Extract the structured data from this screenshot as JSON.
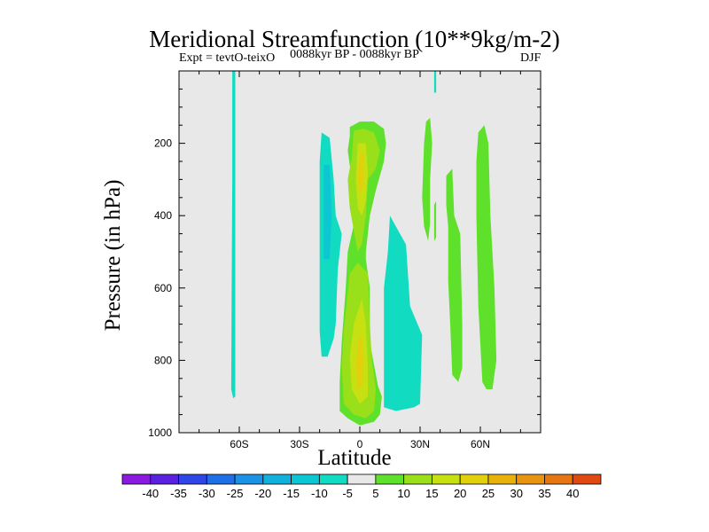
{
  "chart_data": {
    "type": "heatmap",
    "title": "Meridional Streamfunction (10**9kg/m-2)",
    "subtitle_left": "Expt = tevtO-teixO",
    "subtitle_center": "0088kyr BP - 0088kyr BP",
    "subtitle_right": "DJF",
    "xlabel": "Latitude",
    "ylabel": "Pressure (in hPa)",
    "xlim": [
      -90,
      90
    ],
    "ylim": [
      1000,
      0
    ],
    "xticks": [
      {
        "value": -60,
        "label": "60S"
      },
      {
        "value": -30,
        "label": "30S"
      },
      {
        "value": 0,
        "label": "0"
      },
      {
        "value": 30,
        "label": "30N"
      },
      {
        "value": 60,
        "label": "60N"
      }
    ],
    "yticks": [
      {
        "value": 200,
        "label": "200"
      },
      {
        "value": 400,
        "label": "400"
      },
      {
        "value": 600,
        "label": "600"
      },
      {
        "value": 800,
        "label": "800"
      },
      {
        "value": 1000,
        "label": "1000"
      }
    ],
    "background": "#e8e8e8",
    "colorbar": {
      "levels": [
        -45,
        -40,
        -35,
        -30,
        -25,
        -20,
        -15,
        -10,
        -5,
        5,
        10,
        15,
        20,
        25,
        30,
        35,
        40,
        45
      ],
      "labels": [
        "-40",
        "-35",
        "-30",
        "-25",
        "-20",
        "-15",
        "-10",
        "-5",
        "5",
        "10",
        "15",
        "20",
        "25",
        "30",
        "35",
        "40"
      ],
      "colors": [
        "#8a1ae0",
        "#5a22e0",
        "#2f45e6",
        "#1f6fe6",
        "#1b92e3",
        "#12b0dd",
        "#0dc6d3",
        "#11dcc2",
        "#e8e8e8",
        "#5fe02a",
        "#99e01a",
        "#c6e012",
        "#e3d00c",
        "#e8b20a",
        "#e89410",
        "#e67612",
        "#e04a10"
      ]
    },
    "regions": [
      {
        "label": "neg -7",
        "level": -7,
        "points": [
          [
            -63.5,
            0
          ],
          [
            -62,
            0
          ],
          [
            -62,
            900
          ],
          [
            -63,
            905
          ],
          [
            -64,
            880
          ],
          [
            -63.8,
            600
          ],
          [
            -63.5,
            300
          ]
        ]
      },
      {
        "label": "neg -7",
        "level": -7,
        "points": [
          [
            37,
            0
          ],
          [
            38,
            0
          ],
          [
            38,
            60
          ],
          [
            37,
            60
          ]
        ]
      },
      {
        "label": "neg -7",
        "level": -7,
        "points": [
          [
            -19,
            170
          ],
          [
            -15,
            185
          ],
          [
            -13,
            300
          ],
          [
            -12,
            400
          ],
          [
            -9,
            450
          ],
          [
            -11,
            550
          ],
          [
            -12,
            700
          ],
          [
            -13,
            740
          ],
          [
            -16,
            790
          ],
          [
            -19,
            790
          ],
          [
            -20,
            720
          ],
          [
            -20,
            600
          ],
          [
            -20,
            400
          ],
          [
            -20,
            250
          ]
        ]
      },
      {
        "label": "neg -12",
        "level": -12,
        "points": [
          [
            -18,
            260
          ],
          [
            -15,
            260
          ],
          [
            -14,
            400
          ],
          [
            -15,
            520
          ],
          [
            -18,
            520
          ]
        ]
      },
      {
        "label": "neg -7",
        "level": -7,
        "points": [
          [
            15,
            400
          ],
          [
            17,
            420
          ],
          [
            23,
            480
          ],
          [
            25,
            650
          ],
          [
            31,
            730
          ],
          [
            30,
            920
          ],
          [
            27,
            930
          ],
          [
            18,
            940
          ],
          [
            12,
            930
          ],
          [
            12,
            600
          ],
          [
            14,
            500
          ]
        ]
      },
      {
        "label": "pos 7",
        "level": 7,
        "points": [
          [
            -5,
            155
          ],
          [
            0,
            140
          ],
          [
            7,
            140
          ],
          [
            12,
            160
          ],
          [
            13,
            200
          ],
          [
            12,
            250
          ],
          [
            8,
            330
          ],
          [
            5,
            400
          ],
          [
            3,
            500
          ],
          [
            3,
            520
          ],
          [
            5,
            600
          ],
          [
            5,
            750
          ],
          [
            9,
            870
          ],
          [
            11,
            900
          ],
          [
            10,
            950
          ],
          [
            7,
            970
          ],
          [
            0,
            980
          ],
          [
            -6,
            960
          ],
          [
            -10,
            940
          ],
          [
            -10,
            860
          ],
          [
            -9,
            750
          ],
          [
            -7,
            600
          ],
          [
            -6,
            500
          ],
          [
            -2,
            400
          ],
          [
            -4,
            300
          ],
          [
            -6,
            220
          ],
          [
            -5,
            180
          ]
        ]
      },
      {
        "label": "pos 12",
        "level": 12,
        "points": [
          [
            -3,
            165
          ],
          [
            2,
            160
          ],
          [
            7,
            170
          ],
          [
            10,
            220
          ],
          [
            8,
            270
          ],
          [
            4,
            300
          ],
          [
            3,
            400
          ],
          [
            1,
            480
          ],
          [
            -1,
            500
          ],
          [
            -3,
            440
          ],
          [
            -5,
            380
          ],
          [
            -6,
            300
          ],
          [
            -4,
            240
          ]
        ]
      },
      {
        "label": "pos 12",
        "level": 12,
        "points": [
          [
            -5,
            560
          ],
          [
            -1,
            530
          ],
          [
            4,
            560
          ],
          [
            5,
            700
          ],
          [
            6,
            800
          ],
          [
            8,
            880
          ],
          [
            7,
            940
          ],
          [
            3,
            960
          ],
          [
            -3,
            950
          ],
          [
            -8,
            920
          ],
          [
            -9,
            820
          ],
          [
            -8,
            720
          ]
        ]
      },
      {
        "label": "pos 17",
        "level": 17,
        "points": [
          [
            -1,
            200
          ],
          [
            3,
            200
          ],
          [
            4,
            280
          ],
          [
            3,
            360
          ],
          [
            1,
            400
          ],
          [
            -1,
            380
          ],
          [
            -2,
            300
          ]
        ]
      },
      {
        "label": "pos 17",
        "level": 17,
        "points": [
          [
            -3,
            700
          ],
          [
            1,
            630
          ],
          [
            3,
            700
          ],
          [
            4,
            820
          ],
          [
            4,
            900
          ],
          [
            0,
            920
          ],
          [
            -4,
            880
          ],
          [
            -5,
            790
          ]
        ]
      },
      {
        "label": "pos 22",
        "level": 22,
        "points": [
          [
            0,
            230
          ],
          [
            2,
            230
          ],
          [
            2,
            320
          ],
          [
            0,
            340
          ],
          [
            -1,
            290
          ]
        ]
      },
      {
        "label": "pos 22",
        "level": 22,
        "points": [
          [
            -1,
            750
          ],
          [
            1,
            730
          ],
          [
            2,
            800
          ],
          [
            1,
            870
          ],
          [
            -1,
            880
          ],
          [
            -2,
            820
          ]
        ]
      },
      {
        "label": "pos 7",
        "level": 7,
        "points": [
          [
            33,
            140
          ],
          [
            35,
            130
          ],
          [
            36,
            200
          ],
          [
            35,
            300
          ],
          [
            35,
            420
          ],
          [
            34,
            470
          ],
          [
            32,
            430
          ],
          [
            31,
            350
          ],
          [
            32,
            200
          ]
        ]
      },
      {
        "label": "pos 7",
        "level": 7,
        "points": [
          [
            37,
            370
          ],
          [
            38,
            360
          ],
          [
            38,
            460
          ],
          [
            37,
            470
          ]
        ]
      },
      {
        "label": "pos 7",
        "level": 7,
        "points": [
          [
            43,
            290
          ],
          [
            46,
            270
          ],
          [
            47,
            400
          ],
          [
            50,
            450
          ],
          [
            51,
            700
          ],
          [
            51,
            820
          ],
          [
            49,
            860
          ],
          [
            46,
            840
          ],
          [
            45,
            700
          ],
          [
            44,
            580
          ],
          [
            44,
            430
          ],
          [
            43,
            370
          ]
        ]
      },
      {
        "label": "pos 7",
        "level": 7,
        "points": [
          [
            59,
            170
          ],
          [
            62,
            150
          ],
          [
            64,
            200
          ],
          [
            65,
            400
          ],
          [
            67,
            600
          ],
          [
            68,
            800
          ],
          [
            66,
            880
          ],
          [
            63,
            880
          ],
          [
            61,
            860
          ],
          [
            59,
            650
          ],
          [
            58,
            400
          ],
          [
            58,
            250
          ]
        ]
      }
    ]
  }
}
